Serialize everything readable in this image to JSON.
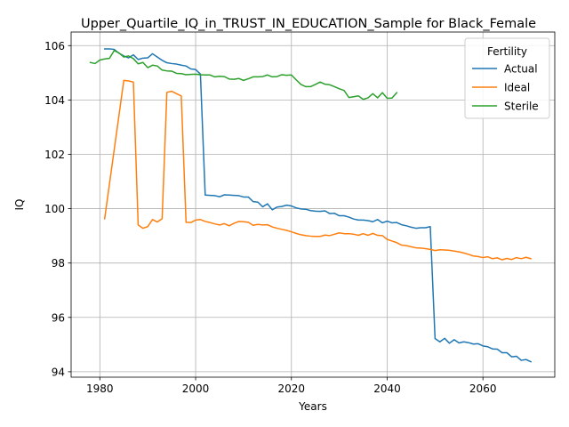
{
  "chart_data": {
    "type": "line",
    "title": "Upper_Quartile_IQ_in_TRUST_IN_EDUCATION_Sample for Black_Female",
    "xlabel": "Years",
    "ylabel": "IQ",
    "xlim": [
      1974,
      2075
    ],
    "ylim": [
      93.8,
      106.5
    ],
    "xticks": [
      1980,
      2000,
      2020,
      2040,
      2060
    ],
    "xtick_labels": [
      "1980",
      "2000",
      "2020",
      "2040",
      "2060"
    ],
    "yticks": [
      94,
      96,
      98,
      100,
      102,
      104,
      106
    ],
    "ytick_labels": [
      "94",
      "96",
      "98",
      "100",
      "102",
      "104",
      "106"
    ],
    "grid": true,
    "legend": {
      "title": "Fertility",
      "placement": "top-right"
    },
    "series": [
      {
        "name": "Actual",
        "color": "#1f77b4",
        "points": [
          [
            1981,
            105.88
          ],
          [
            1982,
            105.88
          ],
          [
            1983,
            105.86
          ],
          [
            1984,
            105.72
          ],
          [
            1985,
            105.62
          ],
          [
            1986,
            105.55
          ],
          [
            1987,
            105.66
          ],
          [
            1988,
            105.49
          ],
          [
            1989,
            105.54
          ],
          [
            1990,
            105.55
          ],
          [
            1991,
            105.7
          ],
          [
            1992,
            105.58
          ],
          [
            1993,
            105.46
          ],
          [
            1994,
            105.37
          ],
          [
            1995,
            105.34
          ],
          [
            1996,
            105.32
          ],
          [
            1997,
            105.28
          ],
          [
            1998,
            105.25
          ],
          [
            1999,
            105.14
          ],
          [
            2000,
            105.12
          ],
          [
            2001,
            104.95
          ],
          [
            2002,
            100.5
          ],
          [
            2003,
            100.49
          ],
          [
            2004,
            100.48
          ],
          [
            2005,
            100.44
          ],
          [
            2006,
            100.51
          ],
          [
            2007,
            100.5
          ],
          [
            2008,
            100.49
          ],
          [
            2009,
            100.48
          ],
          [
            2010,
            100.43
          ],
          [
            2011,
            100.43
          ],
          [
            2012,
            100.26
          ],
          [
            2013,
            100.24
          ],
          [
            2014,
            100.07
          ],
          [
            2015,
            100.18
          ],
          [
            2016,
            99.96
          ],
          [
            2017,
            100.06
          ],
          [
            2018,
            100.08
          ],
          [
            2019,
            100.13
          ],
          [
            2020,
            100.1
          ],
          [
            2021,
            100.03
          ],
          [
            2022,
            99.99
          ],
          [
            2023,
            99.98
          ],
          [
            2024,
            99.93
          ],
          [
            2025,
            99.91
          ],
          [
            2026,
            99.9
          ],
          [
            2027,
            99.92
          ],
          [
            2028,
            99.82
          ],
          [
            2029,
            99.83
          ],
          [
            2030,
            99.74
          ],
          [
            2031,
            99.74
          ],
          [
            2032,
            99.69
          ],
          [
            2033,
            99.62
          ],
          [
            2034,
            99.58
          ],
          [
            2035,
            99.58
          ],
          [
            2036,
            99.56
          ],
          [
            2037,
            99.52
          ],
          [
            2038,
            99.6
          ],
          [
            2039,
            99.48
          ],
          [
            2040,
            99.54
          ],
          [
            2041,
            99.48
          ],
          [
            2042,
            99.49
          ],
          [
            2043,
            99.41
          ],
          [
            2044,
            99.37
          ],
          [
            2045,
            99.32
          ],
          [
            2046,
            99.28
          ],
          [
            2047,
            99.3
          ],
          [
            2048,
            99.3
          ],
          [
            2049,
            99.34
          ],
          [
            2050,
            95.22
          ],
          [
            2051,
            95.1
          ],
          [
            2052,
            95.23
          ],
          [
            2053,
            95.05
          ],
          [
            2054,
            95.18
          ],
          [
            2055,
            95.06
          ],
          [
            2056,
            95.1
          ],
          [
            2057,
            95.07
          ],
          [
            2058,
            95.02
          ],
          [
            2059,
            95.03
          ],
          [
            2060,
            94.95
          ],
          [
            2061,
            94.92
          ],
          [
            2062,
            94.84
          ],
          [
            2063,
            94.83
          ],
          [
            2064,
            94.7
          ],
          [
            2065,
            94.7
          ],
          [
            2066,
            94.55
          ],
          [
            2067,
            94.57
          ],
          [
            2068,
            94.42
          ],
          [
            2069,
            94.45
          ],
          [
            2070,
            94.37
          ]
        ]
      },
      {
        "name": "Ideal",
        "color": "#ff7f0e",
        "points": [
          [
            1981,
            99.63
          ],
          [
            1985,
            104.72
          ],
          [
            1986,
            104.7
          ],
          [
            1987,
            104.66
          ],
          [
            1988,
            99.4
          ],
          [
            1989,
            99.28
          ],
          [
            1990,
            99.34
          ],
          [
            1991,
            99.6
          ],
          [
            1992,
            99.51
          ],
          [
            1993,
            99.63
          ],
          [
            1994,
            104.28
          ],
          [
            1995,
            104.32
          ],
          [
            1996,
            104.23
          ],
          [
            1997,
            104.15
          ],
          [
            1998,
            99.5
          ],
          [
            1999,
            99.49
          ],
          [
            2000,
            99.58
          ],
          [
            2001,
            99.6
          ],
          [
            2002,
            99.53
          ],
          [
            2003,
            99.49
          ],
          [
            2004,
            99.44
          ],
          [
            2005,
            99.4
          ],
          [
            2006,
            99.45
          ],
          [
            2007,
            99.37
          ],
          [
            2008,
            99.46
          ],
          [
            2009,
            99.53
          ],
          [
            2010,
            99.52
          ],
          [
            2011,
            99.5
          ],
          [
            2012,
            99.39
          ],
          [
            2013,
            99.42
          ],
          [
            2014,
            99.4
          ],
          [
            2015,
            99.41
          ],
          [
            2016,
            99.33
          ],
          [
            2017,
            99.28
          ],
          [
            2018,
            99.24
          ],
          [
            2019,
            99.2
          ],
          [
            2020,
            99.15
          ],
          [
            2021,
            99.09
          ],
          [
            2022,
            99.04
          ],
          [
            2023,
            99.01
          ],
          [
            2024,
            98.99
          ],
          [
            2025,
            98.98
          ],
          [
            2026,
            98.98
          ],
          [
            2027,
            99.03
          ],
          [
            2028,
            99.01
          ],
          [
            2029,
            99.06
          ],
          [
            2030,
            99.11
          ],
          [
            2031,
            99.08
          ],
          [
            2032,
            99.08
          ],
          [
            2033,
            99.06
          ],
          [
            2034,
            99.02
          ],
          [
            2035,
            99.08
          ],
          [
            2036,
            99.02
          ],
          [
            2037,
            99.09
          ],
          [
            2038,
            99.02
          ],
          [
            2039,
            99.01
          ],
          [
            2040,
            98.87
          ],
          [
            2041,
            98.81
          ],
          [
            2042,
            98.75
          ],
          [
            2043,
            98.66
          ],
          [
            2044,
            98.64
          ],
          [
            2045,
            98.6
          ],
          [
            2046,
            98.56
          ],
          [
            2047,
            98.55
          ],
          [
            2048,
            98.53
          ],
          [
            2049,
            98.5
          ],
          [
            2050,
            98.46
          ],
          [
            2051,
            98.49
          ],
          [
            2052,
            98.48
          ],
          [
            2053,
            98.47
          ],
          [
            2054,
            98.44
          ],
          [
            2055,
            98.41
          ],
          [
            2056,
            98.37
          ],
          [
            2057,
            98.32
          ],
          [
            2058,
            98.26
          ],
          [
            2059,
            98.24
          ],
          [
            2060,
            98.2
          ],
          [
            2061,
            98.23
          ],
          [
            2062,
            98.16
          ],
          [
            2063,
            98.19
          ],
          [
            2064,
            98.12
          ],
          [
            2065,
            98.17
          ],
          [
            2066,
            98.13
          ],
          [
            2067,
            98.2
          ],
          [
            2068,
            98.16
          ],
          [
            2069,
            98.21
          ],
          [
            2070,
            98.16
          ]
        ]
      },
      {
        "name": "Sterile",
        "color": "#2ca02c",
        "points": [
          [
            1978,
            105.38
          ],
          [
            1979,
            105.34
          ],
          [
            1980,
            105.47
          ],
          [
            1981,
            105.51
          ],
          [
            1982,
            105.53
          ],
          [
            1983,
            105.82
          ],
          [
            1984,
            105.73
          ],
          [
            1985,
            105.58
          ],
          [
            1986,
            105.62
          ],
          [
            1987,
            105.52
          ],
          [
            1988,
            105.33
          ],
          [
            1989,
            105.38
          ],
          [
            1990,
            105.19
          ],
          [
            1991,
            105.28
          ],
          [
            1992,
            105.25
          ],
          [
            1993,
            105.1
          ],
          [
            1994,
            105.07
          ],
          [
            1995,
            105.06
          ],
          [
            1996,
            104.98
          ],
          [
            1997,
            104.97
          ],
          [
            1998,
            104.93
          ],
          [
            1999,
            104.94
          ],
          [
            2000,
            104.95
          ],
          [
            2001,
            104.93
          ],
          [
            2002,
            104.92
          ],
          [
            2003,
            104.92
          ],
          [
            2004,
            104.85
          ],
          [
            2005,
            104.87
          ],
          [
            2006,
            104.86
          ],
          [
            2007,
            104.77
          ],
          [
            2008,
            104.76
          ],
          [
            2009,
            104.79
          ],
          [
            2010,
            104.72
          ],
          [
            2011,
            104.78
          ],
          [
            2012,
            104.85
          ],
          [
            2013,
            104.85
          ],
          [
            2014,
            104.86
          ],
          [
            2015,
            104.92
          ],
          [
            2016,
            104.85
          ],
          [
            2017,
            104.86
          ],
          [
            2018,
            104.93
          ],
          [
            2019,
            104.91
          ],
          [
            2020,
            104.92
          ],
          [
            2021,
            104.74
          ],
          [
            2022,
            104.57
          ],
          [
            2023,
            104.49
          ],
          [
            2024,
            104.49
          ],
          [
            2025,
            104.57
          ],
          [
            2026,
            104.66
          ],
          [
            2027,
            104.58
          ],
          [
            2028,
            104.56
          ],
          [
            2029,
            104.49
          ],
          [
            2030,
            104.41
          ],
          [
            2031,
            104.35
          ],
          [
            2032,
            104.09
          ],
          [
            2033,
            104.12
          ],
          [
            2034,
            104.15
          ],
          [
            2035,
            104.02
          ],
          [
            2036,
            104.08
          ],
          [
            2037,
            104.23
          ],
          [
            2038,
            104.08
          ],
          [
            2039,
            104.27
          ],
          [
            2040,
            104.06
          ],
          [
            2041,
            104.07
          ],
          [
            2042,
            104.27
          ]
        ]
      }
    ]
  }
}
